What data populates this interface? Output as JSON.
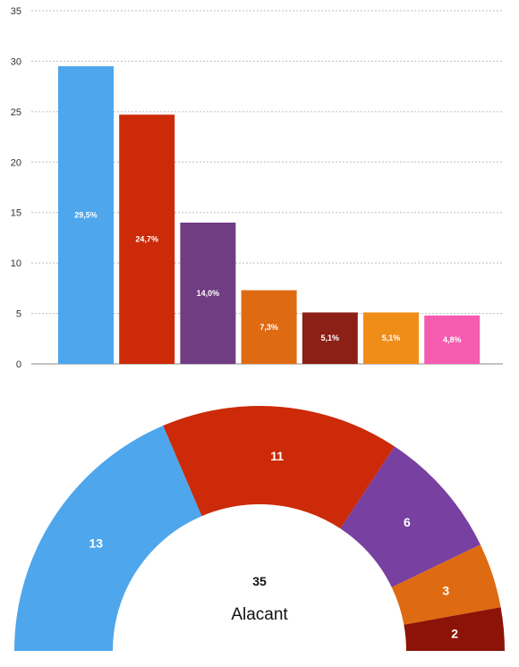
{
  "chart_data": [
    {
      "type": "bar",
      "ylim": [
        0,
        35
      ],
      "yticks": [
        "0",
        "5",
        "10",
        "15",
        "20",
        "25",
        "30",
        "35"
      ],
      "grid": true,
      "series": [
        {
          "values": [
            29.5,
            24.7,
            14.0,
            7.3,
            5.1,
            5.1,
            4.8
          ],
          "labels": [
            "29,5%",
            "24,7%",
            "14,0%",
            "7,3%",
            "5,1%",
            "5,1%",
            "4,8%"
          ],
          "colors": [
            "#4ea6ec",
            "#cc2a08",
            "#703c82",
            "#de6a12",
            "#8c1f16",
            "#f08d18",
            "#f55bb0"
          ]
        }
      ]
    },
    {
      "type": "pie",
      "subtype": "hemicycle",
      "total_label": "35",
      "title": "Alacant",
      "slices": [
        {
          "value": 13,
          "label": "13",
          "color": "#4ea6ec"
        },
        {
          "value": 11,
          "label": "11",
          "color": "#cc2a08"
        },
        {
          "value": 6,
          "label": "6",
          "color": "#7840a0"
        },
        {
          "value": 3,
          "label": "3",
          "color": "#de6a12"
        },
        {
          "value": 2,
          "label": "2",
          "color": "#8c1308"
        }
      ]
    }
  ]
}
